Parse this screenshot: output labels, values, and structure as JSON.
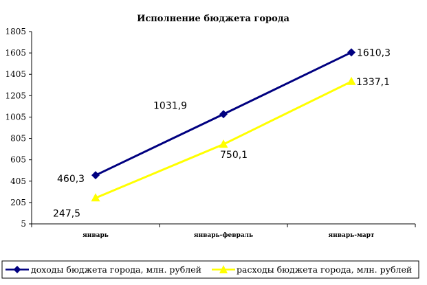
{
  "chart_data": {
    "type": "line",
    "title": "Исполнение бюджета города",
    "categories": [
      "январь",
      "январь-февраль",
      "январь-март"
    ],
    "ylim": [
      5,
      1805
    ],
    "yticks": [
      "1805",
      "1605",
      "1405",
      "1205",
      "1005",
      "805",
      "605",
      "405",
      "205",
      "5"
    ],
    "ytick_values": [
      1805,
      1605,
      1405,
      1205,
      1005,
      805,
      605,
      405,
      205,
      5
    ],
    "grid": false,
    "legend_position": "bottom",
    "series": [
      {
        "name": "доходы бюджета города, млн. рублей",
        "values": [
          460.3,
          1031.9,
          1610.3
        ],
        "labels": [
          "460,3",
          "1031,9",
          "1610,3"
        ],
        "color": "#000080",
        "marker": "diamond"
      },
      {
        "name": "расходы бюджета города, млн. рублей",
        "values": [
          247.5,
          750.1,
          1337.1
        ],
        "labels": [
          "247,5",
          "750,1",
          "1337,1"
        ],
        "color": "#FFFF00",
        "marker": "triangle"
      }
    ]
  }
}
